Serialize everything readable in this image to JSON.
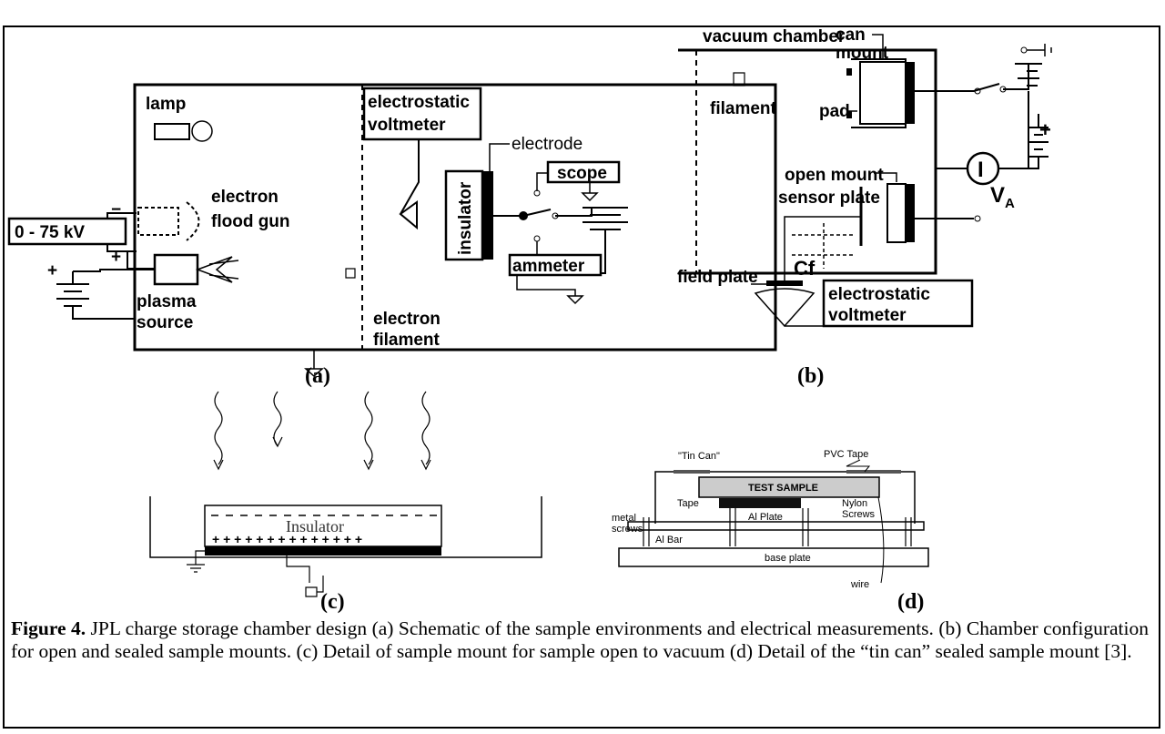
{
  "figure": {
    "panel_a": {
      "label": "(a)",
      "lamp": "lamp",
      "flood_gun": [
        "electron",
        "flood gun"
      ],
      "supply": "0 - 75 kV",
      "minus": "−",
      "plus_top": "+",
      "plus_battery": "+",
      "plasma": [
        "plasma",
        "source"
      ],
      "filament": [
        "electron",
        "filament"
      ],
      "voltmeter": [
        "electrostatic",
        "voltmeter"
      ],
      "insulator": "insulator",
      "electrode": "electrode",
      "scope": "scope",
      "ammeter": "ammeter"
    },
    "panel_b": {
      "label": "(b)",
      "chamber": "vacuum chamber",
      "filament": "filament",
      "can_mount": [
        "can",
        "mount"
      ],
      "pad": "pad",
      "open_mount": "open mount",
      "sensor_plate": "sensor plate",
      "cf": "Cf",
      "field_plate": "field plate",
      "voltmeter": [
        "electrostatic",
        "voltmeter"
      ],
      "current": "I",
      "voltage": [
        "V",
        "A"
      ],
      "plus": "+"
    },
    "panel_c": {
      "label": "(c)",
      "insulator": "Insulator",
      "charges": "+ + + + + + + + + + + + + +"
    },
    "panel_d": {
      "label": "(d)",
      "tin_can": "\"Tin Can\"",
      "pvc_tape": "PVC Tape",
      "test_sample": "TEST SAMPLE",
      "tape": "Tape",
      "al_plate": "Al Plate",
      "nylon_screws": [
        "Nylon",
        "Screws"
      ],
      "metal_screws": [
        "metal",
        "screws"
      ],
      "al_bar": "Al Bar",
      "base_plate": "base plate",
      "wire": "wire"
    },
    "caption": {
      "number": "Figure 4.",
      "text": " JPL charge storage chamber design (a) Schematic of the sample environments and electrical measurements. (b) Chamber configuration for open and sealed sample mounts. (c) Detail of sample mount for sample open to vacuum (d) Detail of the “tin can” sealed sample mount [3]."
    }
  }
}
